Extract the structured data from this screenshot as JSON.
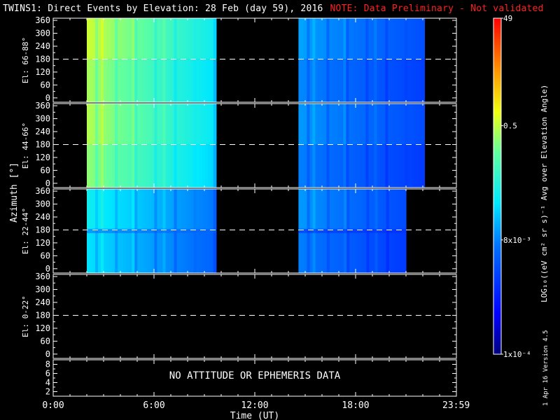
{
  "title": {
    "main": "TWINS1: Direct Events by Elevation: 28 Feb (day  59), 2016",
    "note": "NOTE: Data Preliminary - Not validated"
  },
  "colors": {
    "background": "#000000",
    "axes": "#ffffff",
    "note": "#ff2020"
  },
  "chart_data": {
    "type": "heatmap",
    "ylabel": "Azimuth [°]",
    "xlabel": "Time (UT)",
    "xlim_hours": [
      0,
      24
    ],
    "x_tick_labels": [
      "0:00",
      "6:00",
      "12:00",
      "18:00",
      "23:59"
    ],
    "x_tick_hours": [
      0,
      6,
      12,
      18,
      23.983
    ],
    "panels": [
      {
        "label": "El: 66-88°",
        "ylim": [
          -20,
          370
        ],
        "y_ticks": [
          0,
          60,
          120,
          180,
          240,
          300,
          360
        ],
        "dashed_line_y": 180,
        "data_blocks": [
          {
            "start_hour": 2.0,
            "end_hour": 9.7,
            "level": 0.62
          },
          {
            "start_hour": 14.6,
            "end_hour": 22.1,
            "level": 0.33
          }
        ]
      },
      {
        "label": "El: 44-66°",
        "ylim": [
          -20,
          370
        ],
        "y_ticks": [
          0,
          60,
          120,
          180,
          240,
          300,
          360
        ],
        "dashed_line_y": 180,
        "data_blocks": [
          {
            "start_hour": 2.0,
            "end_hour": 9.7,
            "level": 0.6
          },
          {
            "start_hour": 14.6,
            "end_hour": 22.1,
            "level": 0.32
          }
        ]
      },
      {
        "label": "El: 22-44°",
        "ylim": [
          -20,
          370
        ],
        "y_ticks": [
          0,
          60,
          120,
          180,
          240,
          300,
          360
        ],
        "dashed_line_y": 180,
        "data_blocks": [
          {
            "start_hour": 2.0,
            "end_hour": 9.7,
            "level": 0.42
          },
          {
            "start_hour": 14.6,
            "end_hour": 21.0,
            "level": 0.32
          }
        ]
      },
      {
        "label": "El: 0-22°",
        "ylim": [
          -20,
          370
        ],
        "y_ticks": [
          0,
          60,
          120,
          180,
          240,
          300,
          360
        ],
        "dashed_line_y": 180,
        "data_blocks": []
      }
    ],
    "aux_panel": {
      "ylim": [
        1,
        9
      ],
      "y_ticks": [
        2,
        4,
        6,
        8
      ],
      "message": "NO ATTITUDE OR EPHEMERIS DATA"
    },
    "colorbar": {
      "label": "LOG₁₀((eV cm² sr s)⁻¹ Avg over Elevation Angle)",
      "tick_labels": [
        {
          "text": "49",
          "level": 1.0
        },
        {
          "text": "0.5",
          "level": 0.68
        },
        {
          "text": "8x10⁻³",
          "level": 0.34
        },
        {
          "text": "1x10⁻⁴",
          "level": 0.0
        }
      ]
    }
  },
  "footer": {
    "side_text": "1 Apr 16   Version 4.5"
  }
}
